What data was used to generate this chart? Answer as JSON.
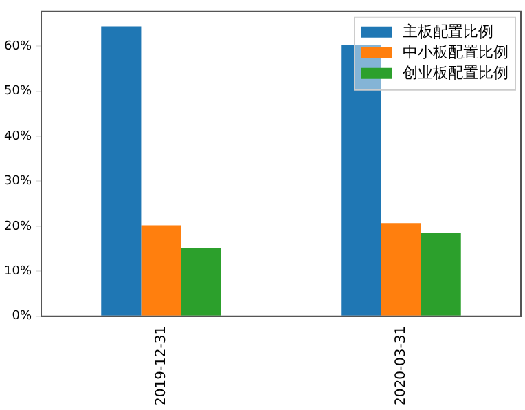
{
  "chart_data": {
    "type": "bar",
    "categories": [
      "2019-12-31",
      "2020-03-31"
    ],
    "series": [
      {
        "name": "主板配置比例",
        "color": "#1f77b4",
        "values": [
          64.4,
          60.3
        ]
      },
      {
        "name": "中小板配置比例",
        "color": "#ff7f0e",
        "values": [
          20.2,
          20.7
        ]
      },
      {
        "name": "创业板配置比例",
        "color": "#2ca02c",
        "values": [
          15.1,
          18.6
        ]
      }
    ],
    "ylim": [
      0,
      67.7
    ],
    "yticks": [
      {
        "value": 0,
        "label": "0%"
      },
      {
        "value": 10,
        "label": "10%"
      },
      {
        "value": 20,
        "label": "20%"
      },
      {
        "value": 30,
        "label": "30%"
      },
      {
        "value": 40,
        "label": "40%"
      },
      {
        "value": 50,
        "label": "50%"
      },
      {
        "value": 60,
        "label": "60%"
      }
    ],
    "grid": false,
    "legend": "top right"
  }
}
